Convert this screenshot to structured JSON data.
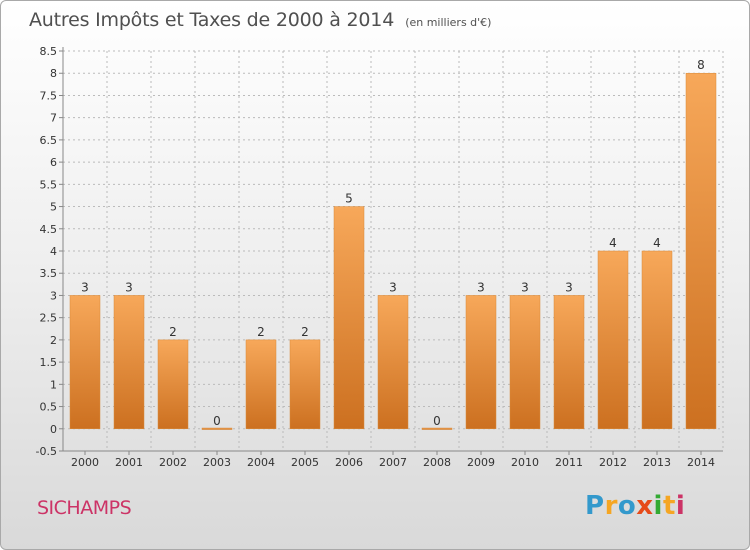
{
  "title": "Autres Impôts et Taxes de 2000 à 2014",
  "unit": "(en milliers d'€)",
  "commune": "SICHAMPS",
  "brand": "Proxiti",
  "colors": {
    "bar_light": "#f7a85a",
    "bar_dark": "#cc7020",
    "grid": "#bbbbbb",
    "axis_text": "#333333",
    "commune_text": "#cc3366"
  },
  "chart_data": {
    "type": "bar",
    "title": "Autres Impôts et Taxes de 2000 à 2014",
    "ylabel": "",
    "xlabel": "",
    "categories": [
      "2000",
      "2001",
      "2002",
      "2003",
      "2004",
      "2005",
      "2006",
      "2007",
      "2008",
      "2009",
      "2010",
      "2011",
      "2012",
      "2013",
      "2014"
    ],
    "values": [
      3,
      3,
      2,
      0,
      2,
      2,
      5,
      3,
      0,
      3,
      3,
      3,
      4,
      4,
      8
    ],
    "value_labels": [
      "3",
      "3",
      "2",
      "0",
      "2",
      "2",
      "5",
      "3",
      "0",
      "3",
      "3",
      "3",
      "4",
      "4",
      "8"
    ],
    "ylim": [
      -0.5,
      8.5
    ],
    "yticks": [
      -0.5,
      0,
      0.5,
      1,
      1.5,
      2,
      2.5,
      3,
      3.5,
      4,
      4.5,
      5,
      5.5,
      6,
      6.5,
      7,
      7.5,
      8,
      8.5
    ],
    "ytick_labels": [
      "-0.5",
      "0",
      "0.5",
      "1",
      "1.5",
      "2",
      "2.5",
      "3",
      "3.5",
      "4",
      "4.5",
      "5",
      "5.5",
      "6",
      "6.5",
      "7",
      "7.5",
      "8",
      "8.5"
    ],
    "grid": true
  }
}
